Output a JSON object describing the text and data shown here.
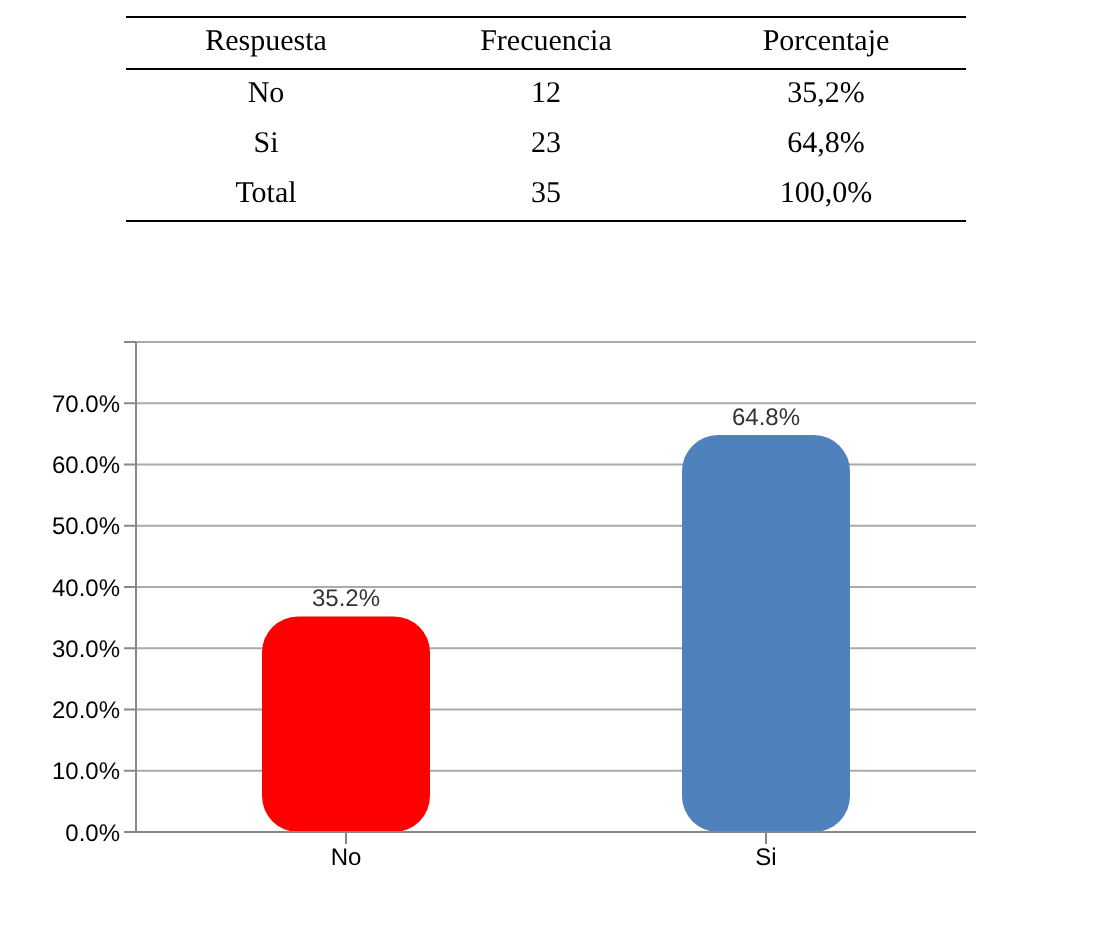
{
  "chart_data": [
    {
      "type": "other",
      "annotations": [
        "Respuesta",
        "Frecuencia",
        "Porcentaje",
        "No",
        "12",
        "35,2%",
        "Si",
        "23",
        "64,8%",
        "Total",
        "35",
        "100,0%"
      ]
    },
    {
      "type": "bar",
      "categories": [
        "No",
        "Si"
      ],
      "values": [
        35.2,
        64.8
      ],
      "colors": [
        "#ff0000",
        "#4f81bd"
      ],
      "value_labels": [
        "35.2%",
        "64.8%"
      ],
      "ylim": [
        0,
        80
      ],
      "yticks": [
        {
          "value": 0,
          "label": "0.0%"
        },
        {
          "value": 10,
          "label": "10.0%"
        },
        {
          "value": 20,
          "label": "20.0%"
        },
        {
          "value": 30,
          "label": "30.0%"
        },
        {
          "value": 40,
          "label": "40.0%"
        },
        {
          "value": 50,
          "label": "50.0%"
        },
        {
          "value": 60,
          "label": "60.0%"
        },
        {
          "value": 70,
          "label": "70.0%"
        },
        {
          "value": 80,
          "label": null
        }
      ],
      "grid": "y"
    }
  ]
}
